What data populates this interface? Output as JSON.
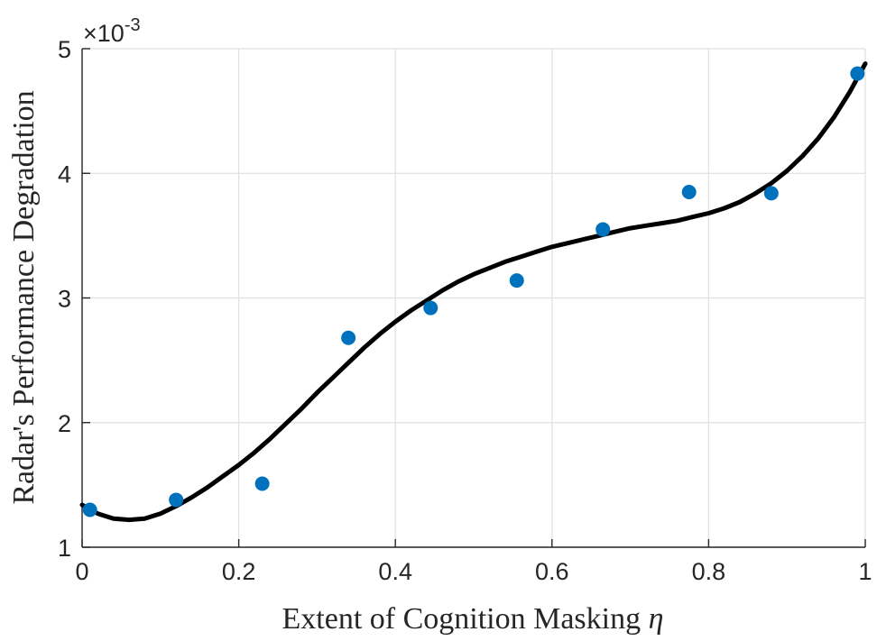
{
  "chart_data": {
    "type": "scatter",
    "xlabel": "Extent of Cognition Masking",
    "xlabel_symbol": "η",
    "ylabel": "Radar's Performance Degradation",
    "xlim": [
      0,
      1
    ],
    "ylim": [
      0.001,
      0.005
    ],
    "y_multiplier": {
      "base": "×10",
      "exponent": "-3"
    },
    "xticks": [
      0,
      0.2,
      0.4,
      0.6,
      0.8,
      1
    ],
    "xtick_labels": [
      "0",
      "0.2",
      "0.4",
      "0.6",
      "0.8",
      "1"
    ],
    "yticks": [
      0.001,
      0.002,
      0.003,
      0.004,
      0.005
    ],
    "ytick_labels": [
      "1",
      "2",
      "3",
      "4",
      "5"
    ],
    "grid": true,
    "colors": {
      "points": "#0072BD",
      "fit": "#000000",
      "grid": "#e0e0e0",
      "axis": "#262626"
    },
    "series": [
      {
        "kind": "points",
        "x": [
          0.01,
          0.12,
          0.23,
          0.34,
          0.445,
          0.555,
          0.665,
          0.775,
          0.88,
          0.99
        ],
        "y": [
          0.0013,
          0.00138,
          0.00151,
          0.00268,
          0.00292,
          0.00314,
          0.00355,
          0.00385,
          0.00384,
          0.0048
        ]
      },
      {
        "kind": "fit_curve",
        "x": [
          0.0,
          0.02,
          0.04,
          0.06,
          0.08,
          0.1,
          0.12,
          0.14,
          0.16,
          0.18,
          0.2,
          0.22,
          0.24,
          0.26,
          0.28,
          0.3,
          0.32,
          0.34,
          0.36,
          0.38,
          0.4,
          0.42,
          0.44,
          0.46,
          0.48,
          0.5,
          0.52,
          0.54,
          0.56,
          0.58,
          0.6,
          0.62,
          0.64,
          0.66,
          0.68,
          0.7,
          0.72,
          0.74,
          0.76,
          0.78,
          0.8,
          0.82,
          0.84,
          0.86,
          0.88,
          0.9,
          0.92,
          0.94,
          0.96,
          0.98,
          1.0
        ],
        "y": [
          0.00134,
          0.00127,
          0.00123,
          0.00122,
          0.00123,
          0.00127,
          0.00133,
          0.0014,
          0.00148,
          0.00157,
          0.00166,
          0.00176,
          0.00187,
          0.00199,
          0.00211,
          0.00224,
          0.00236,
          0.00248,
          0.0026,
          0.00271,
          0.00281,
          0.0029,
          0.00298,
          0.00306,
          0.00313,
          0.00319,
          0.00324,
          0.00329,
          0.00333,
          0.00337,
          0.00341,
          0.00344,
          0.00347,
          0.0035,
          0.00353,
          0.00356,
          0.00358,
          0.0036,
          0.00362,
          0.00365,
          0.00368,
          0.00372,
          0.00377,
          0.00384,
          0.00392,
          0.00402,
          0.00414,
          0.00428,
          0.00445,
          0.00465,
          0.00488
        ]
      }
    ]
  }
}
